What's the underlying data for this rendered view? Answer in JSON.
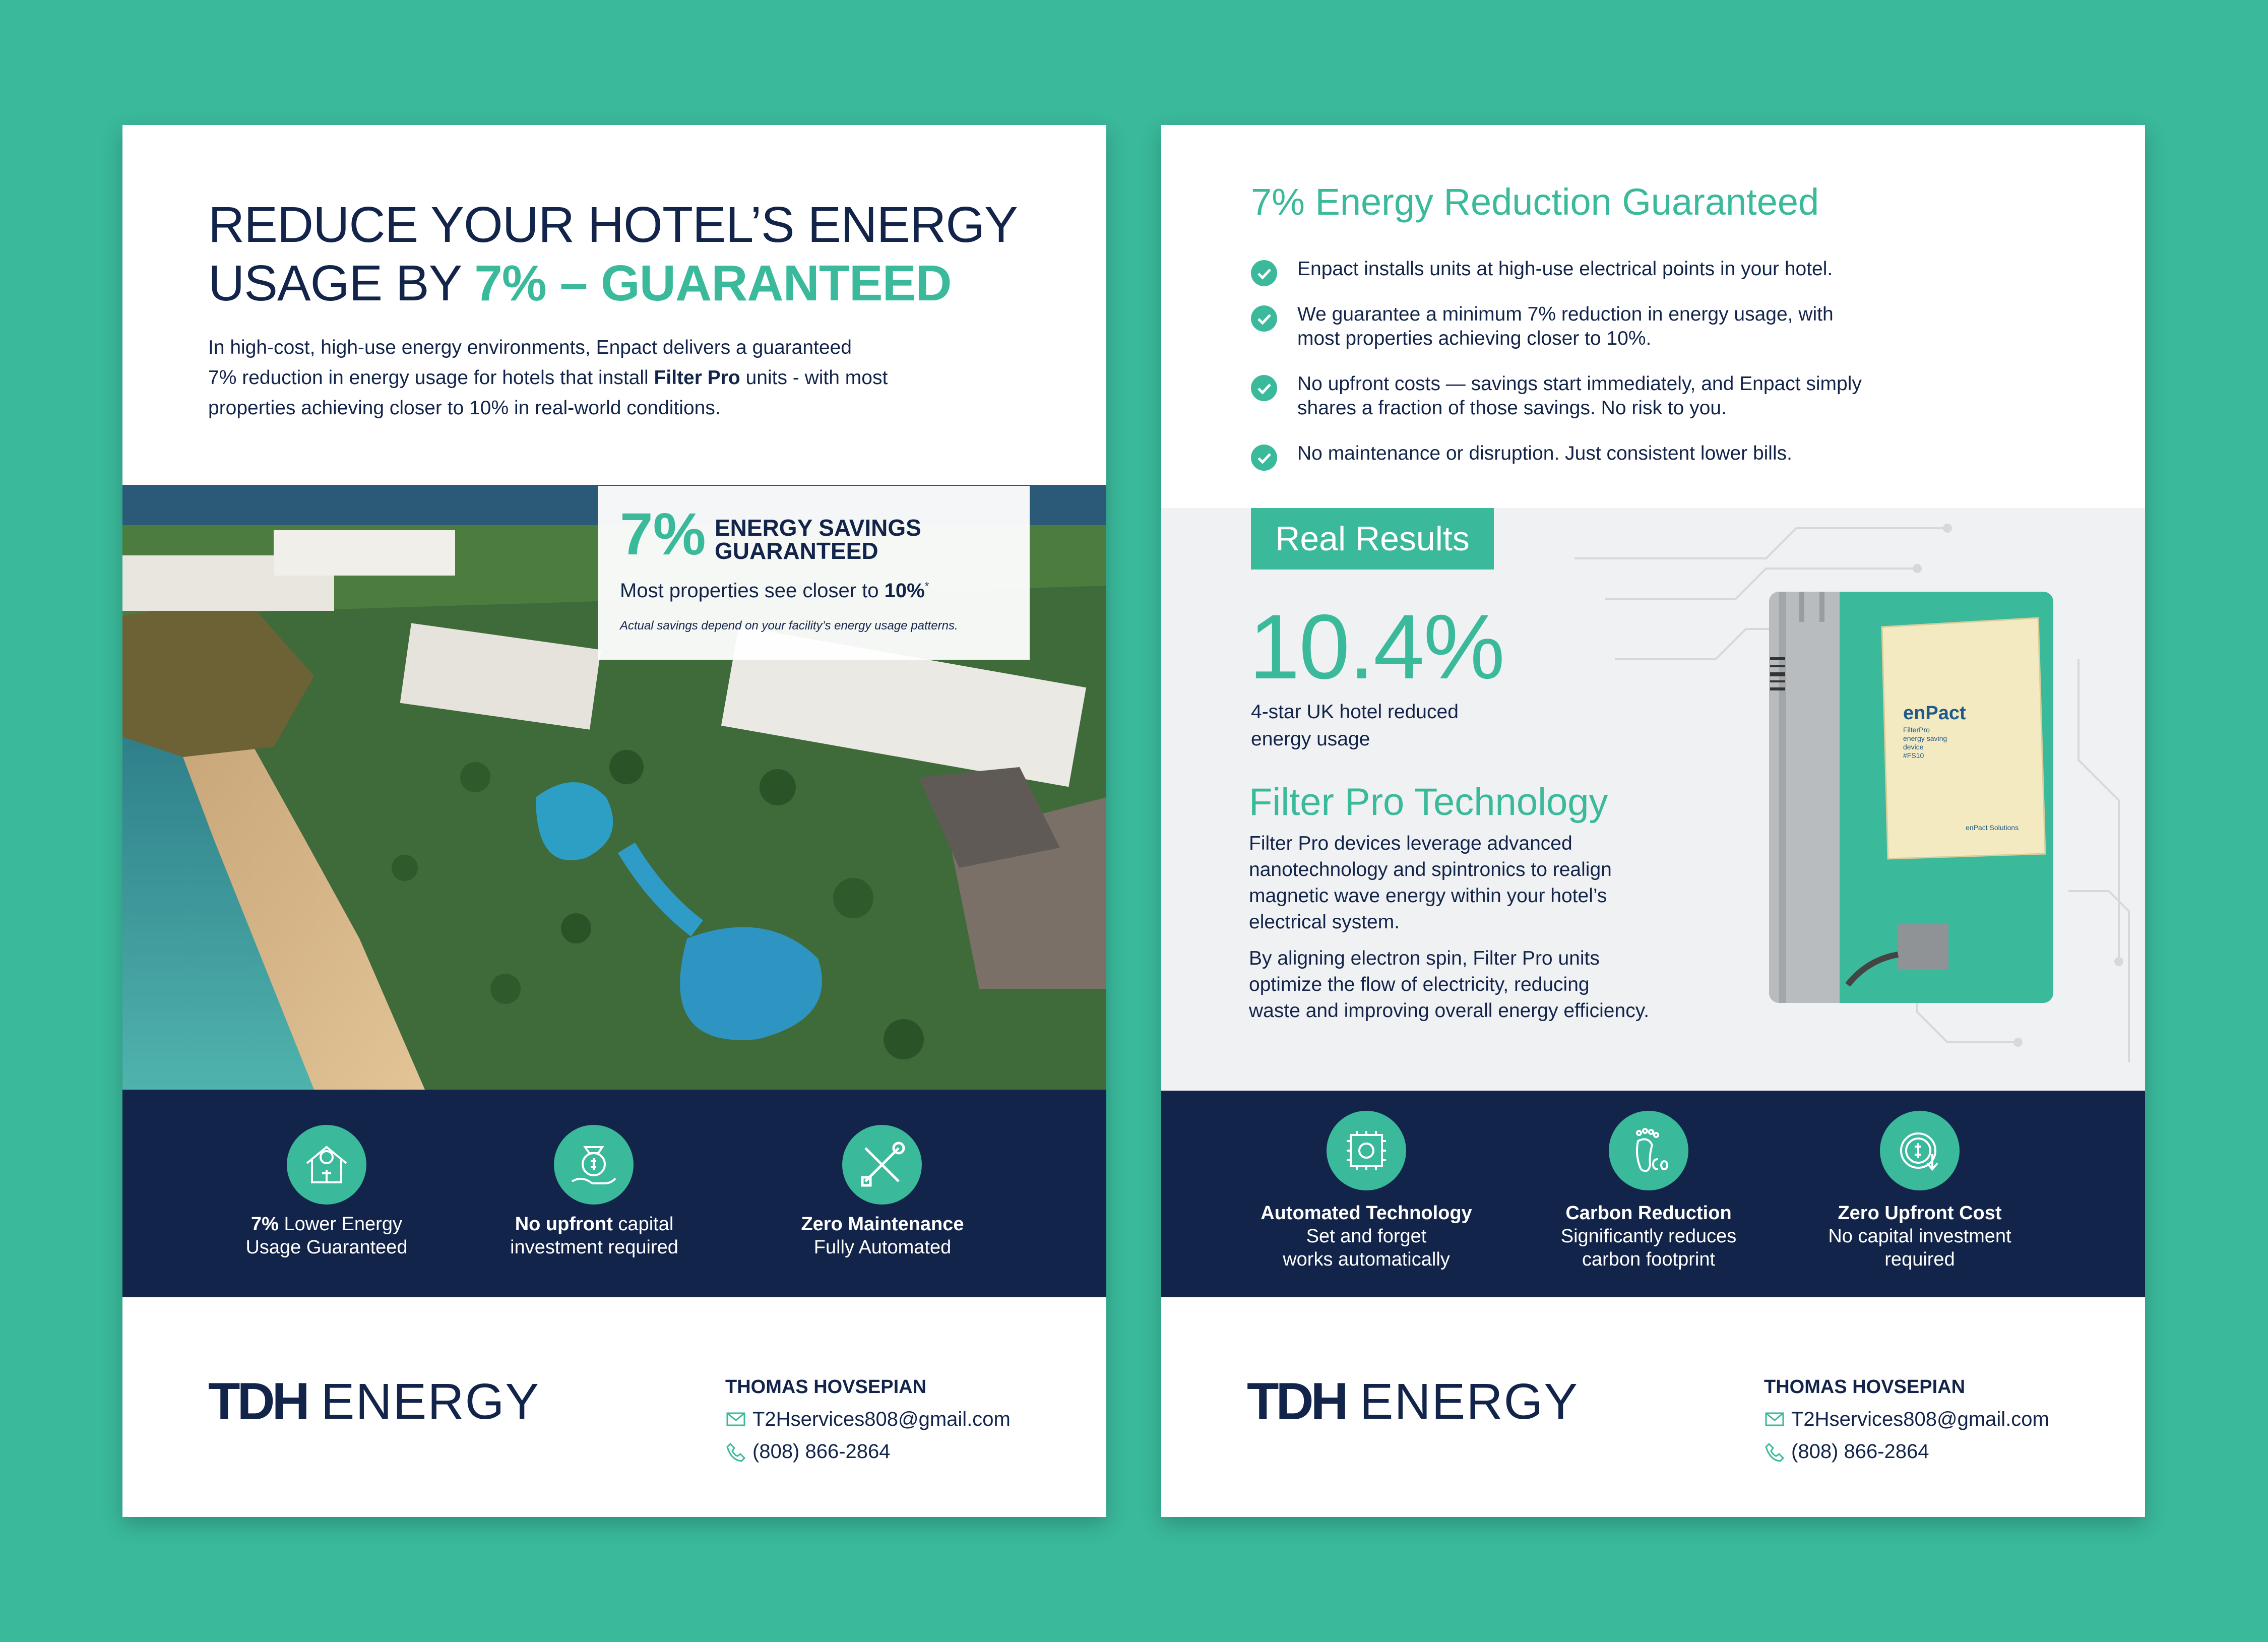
{
  "page1": {
    "headline_line1": "REDUCE YOUR HOTEL’S ENERGY",
    "headline_line2_prefix": "USAGE BY ",
    "headline_line2_highlight": "7% – GUARANTEED",
    "intro_1": "In high-cost, high-use energy environments, Enpact delivers a guaranteed",
    "intro_2a": "7% reduction in energy usage for hotels that install ",
    "intro_2b": "Filter Pro",
    "intro_2c": " units - with most",
    "intro_3": "properties achieving closer to 10% in real-world conditions.",
    "callout": {
      "big": "7%",
      "heading_1": "ENERGY SAVINGS",
      "heading_2": "GUARANTEED",
      "sub_prefix": "Most properties see closer to ",
      "sub_value": "10%",
      "sub_mark": "*",
      "note": "Actual savings depend on your facility’s energy usage patterns."
    },
    "features": [
      {
        "bold": "7%",
        "rest": " Lower Energy",
        "line2": "Usage Guaranteed",
        "icon": "house-energy-icon"
      },
      {
        "bold": "No upfront",
        "rest": " capital",
        "line2": "investment required",
        "icon": "money-hand-icon"
      },
      {
        "bold": "Zero Maintenance",
        "rest": "",
        "line2": "Fully Automated",
        "icon": "tools-icon"
      }
    ]
  },
  "page2": {
    "heading": "7% Energy Reduction Guaranteed",
    "checks": [
      [
        "Enpact installs units at high-use electrical points in your hotel."
      ],
      [
        "We guarantee a minimum 7% reduction in energy usage, with",
        "most properties achieving closer to 10%."
      ],
      [
        "No upfront costs — savings start immediately, and Enpact simply",
        "shares a fraction of those savings. No risk to you."
      ],
      [
        "No maintenance or disruption. Just consistent lower bills."
      ]
    ],
    "real_results": "Real Results",
    "stat_value": "10.4%",
    "stat_label_1": "4-star UK hotel reduced",
    "stat_label_2": "energy usage",
    "tech_heading": "Filter Pro Technology",
    "tech_p1": [
      "Filter Pro devices leverage advanced",
      "nanotechnology and spintronics to realign",
      "magnetic wave energy within your hotel’s",
      "electrical system."
    ],
    "tech_p2": [
      "By aligning electron spin, Filter Pro units",
      "optimize the flow of electricity, reducing",
      "waste and improving overall energy efficiency."
    ],
    "device_label": {
      "brand": "enPact",
      "l1": "FilterPro",
      "l2": "energy saving",
      "l3": "device",
      "l4": "#FS10",
      "foot": "enPact Solutions"
    },
    "features": [
      {
        "title": "Automated Technology",
        "l1": "Set and forget",
        "l2": "works automatically",
        "icon": "chip-gear-icon"
      },
      {
        "title": "Carbon Reduction",
        "l1": "Significantly reduces",
        "l2": "carbon footprint",
        "icon": "footprint-co2-icon"
      },
      {
        "title": "Zero Upfront Cost",
        "l1": "No capital investment",
        "l2": "required",
        "icon": "dollar-arrow-icon"
      }
    ]
  },
  "footer": {
    "logo_mark": "TDH",
    "logo_word": "ENERGY",
    "name": "THOMAS HOVSEPIAN",
    "email": "T2Hservices808@gmail.com",
    "phone": "(808) 866-2864"
  },
  "colors": {
    "teal": "#3ab99b",
    "navy": "#13244a",
    "gray": "#f0f1f3"
  }
}
